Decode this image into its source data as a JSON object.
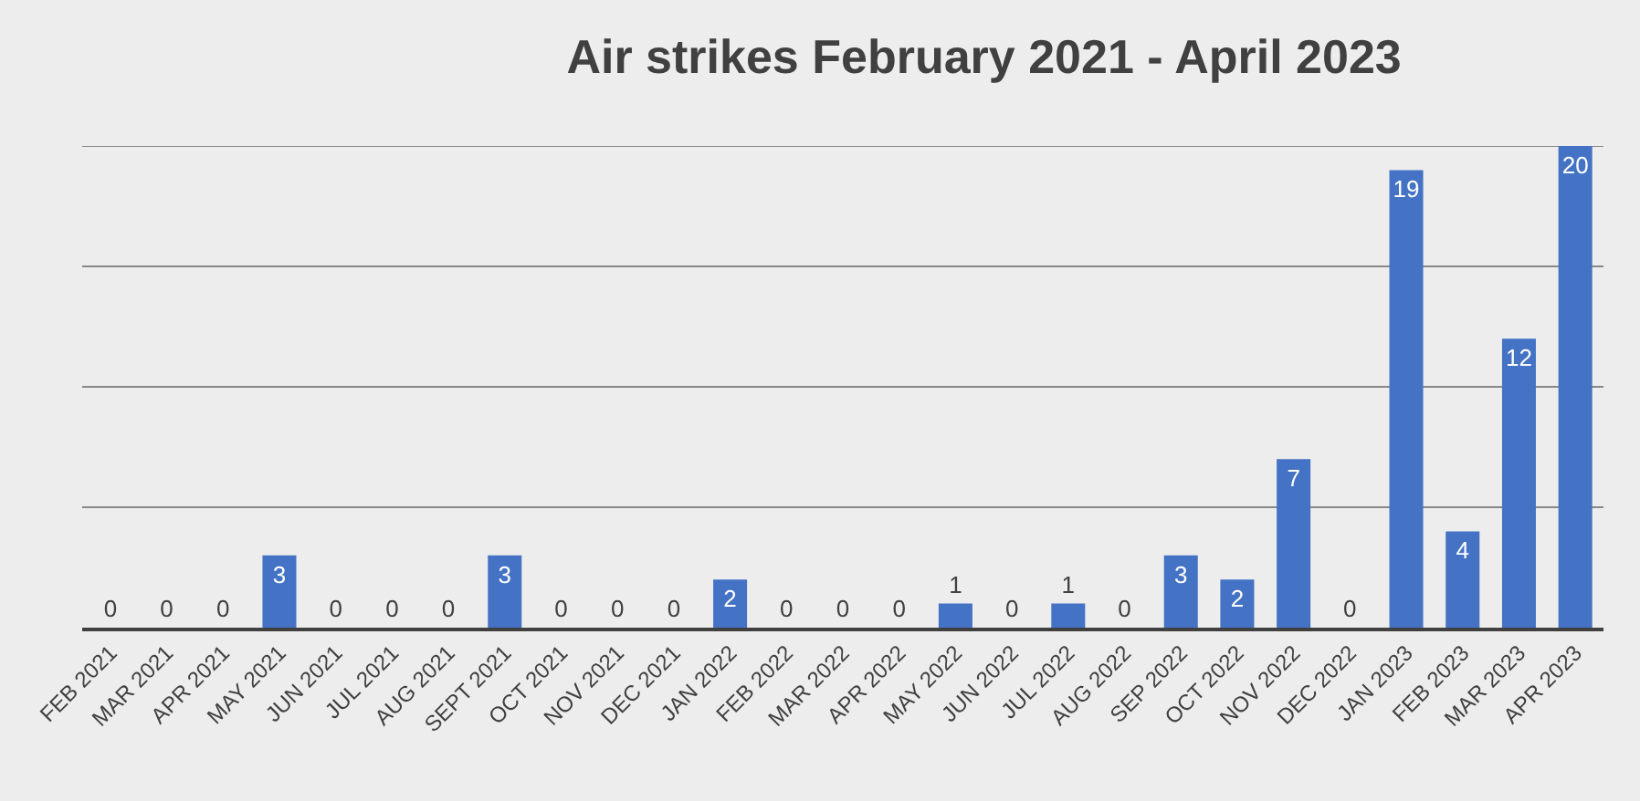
{
  "chart_data": {
    "type": "bar",
    "title": "Air strikes February 2021 - April 2023",
    "categories": [
      "FEB 2021",
      "MAR 2021",
      "APR 2021",
      "MAY 2021",
      "JUN 2021",
      "JUL 2021",
      "AUG 2021",
      "SEPT 2021",
      "OCT 2021",
      "NOV 2021",
      "DEC 2021",
      "JAN 2022",
      "FEB 2022",
      "MAR 2022",
      "APR 2022",
      "MAY 2022",
      "JUN 2022",
      "JUL 2022",
      "AUG 2022",
      "SEP 2022",
      "OCT 2022",
      "NOV 2022",
      "DEC 2022",
      "JAN 2023",
      "FEB 2023",
      "MAR 2023",
      "APR 2023"
    ],
    "values": [
      0,
      0,
      0,
      3,
      0,
      0,
      0,
      3,
      0,
      0,
      0,
      2,
      0,
      0,
      0,
      1,
      0,
      1,
      0,
      3,
      2,
      7,
      0,
      19,
      4,
      12,
      20
    ],
    "color": "#4472c4",
    "data_labels": true,
    "grid": "y",
    "ylim": [
      0,
      20
    ],
    "yticks": [
      {
        "value": 0,
        "label": null
      },
      {
        "value": 5,
        "label": null
      },
      {
        "value": 10,
        "label": null
      },
      {
        "value": 15,
        "label": null
      },
      {
        "value": 20,
        "label": null
      }
    ]
  }
}
